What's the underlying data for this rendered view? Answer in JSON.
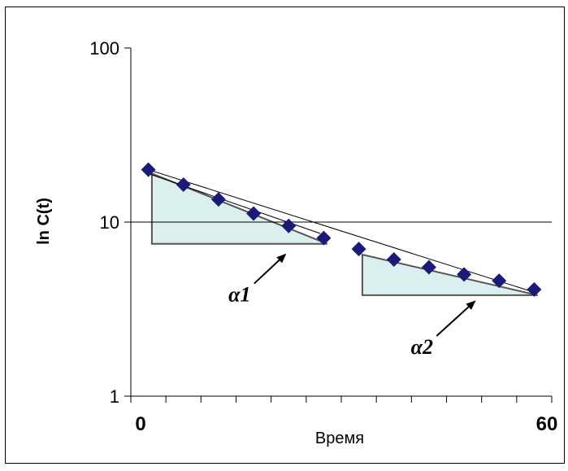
{
  "chart_data": {
    "type": "scatter",
    "title": "",
    "xlabel": "Время",
    "ylabel": "ln C(t)",
    "xlim": [
      0,
      60
    ],
    "ylim": [
      1,
      100
    ],
    "y_scale": "log",
    "y_ticks": [
      {
        "value": 1,
        "label": "1"
      },
      {
        "value": 10,
        "label": "10"
      },
      {
        "value": 100,
        "label": "100"
      }
    ],
    "x_tick_labels": [
      {
        "value": 0,
        "label": "0"
      },
      {
        "value": 60,
        "label": "60"
      }
    ],
    "x_minor_ticks": [
      0,
      5,
      10,
      15,
      20,
      25,
      30,
      35,
      40,
      45,
      50,
      55,
      60
    ],
    "horizontal_gridline_at": 10,
    "marker_color": "#1a1a7a",
    "series": [
      {
        "x": [
          2.5,
          7.5,
          12.5,
          17.5,
          22.5,
          27.5,
          32.5,
          37.5,
          42.5,
          47.5,
          52.5,
          57.5
        ],
        "y": [
          20,
          16.4,
          13.5,
          11.2,
          9.5,
          8.1,
          7.0,
          6.1,
          5.5,
          5.0,
          4.6,
          4.1
        ]
      }
    ],
    "trendlines": [
      {
        "x": [
          2.5,
          57.5
        ],
        "y": [
          20.0,
          3.95
        ]
      },
      {
        "x": [
          2.5,
          27.0
        ],
        "y": [
          19.0,
          8.6
        ]
      }
    ],
    "triangles": [
      {
        "x_start": 3,
        "x_end": 28,
        "y_top": 19.0,
        "y_bottom": 7.5,
        "fill": "#dcefef",
        "stroke": "#555555"
      },
      {
        "x_start": 33,
        "x_end": 58,
        "y_top": 6.5,
        "y_bottom": 3.8,
        "fill": "#dcefef",
        "stroke": "#555555"
      }
    ],
    "annotations": [
      {
        "text": "α1",
        "label_at": {
          "x": 15.5,
          "y": 3.5
        },
        "arrow_to": {
          "x": 22.0,
          "y": 6.5
        }
      },
      {
        "text": "α2",
        "label_at": {
          "x": 41.5,
          "y": 1.75
        },
        "arrow_to": {
          "x": 49.0,
          "y": 3.5
        }
      }
    ]
  }
}
